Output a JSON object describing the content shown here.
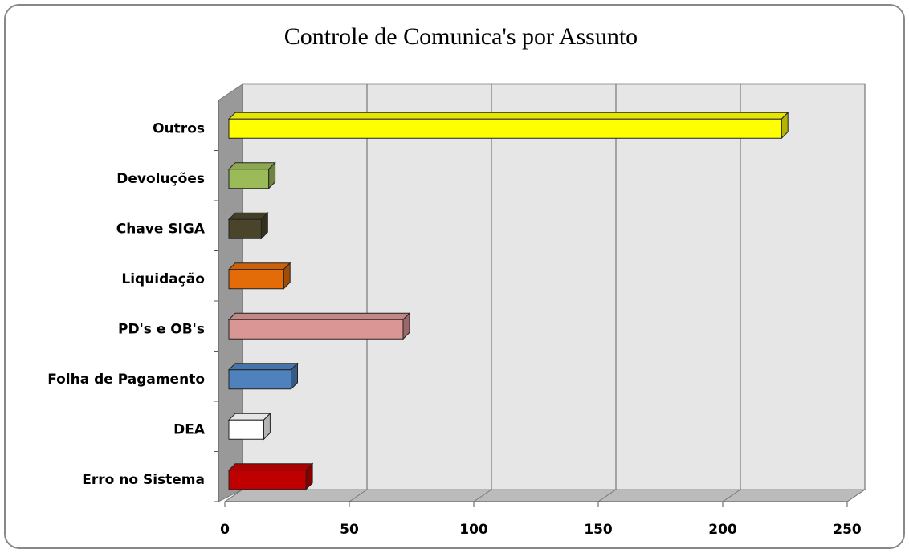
{
  "chart_data": {
    "type": "bar3d_horizontal",
    "title": "Controle de Comunica's por Assunto",
    "categories": [
      "Erro no Sistema",
      "DEA",
      "Folha de Pagamento",
      "PD's e OB's",
      "Liquidação",
      "Chave SIGA",
      "Devoluções",
      "Outros"
    ],
    "values": [
      31,
      14,
      25,
      70,
      22,
      13,
      16,
      222
    ],
    "colors": [
      "#c00000",
      "#ffffff",
      "#4f81bd",
      "#d99694",
      "#e36c09",
      "#4a452a",
      "#9bbb59",
      "#ffff00"
    ],
    "xlim": [
      0,
      250
    ],
    "xticks": [
      0,
      50,
      100,
      150,
      200,
      250
    ],
    "grid": true
  }
}
